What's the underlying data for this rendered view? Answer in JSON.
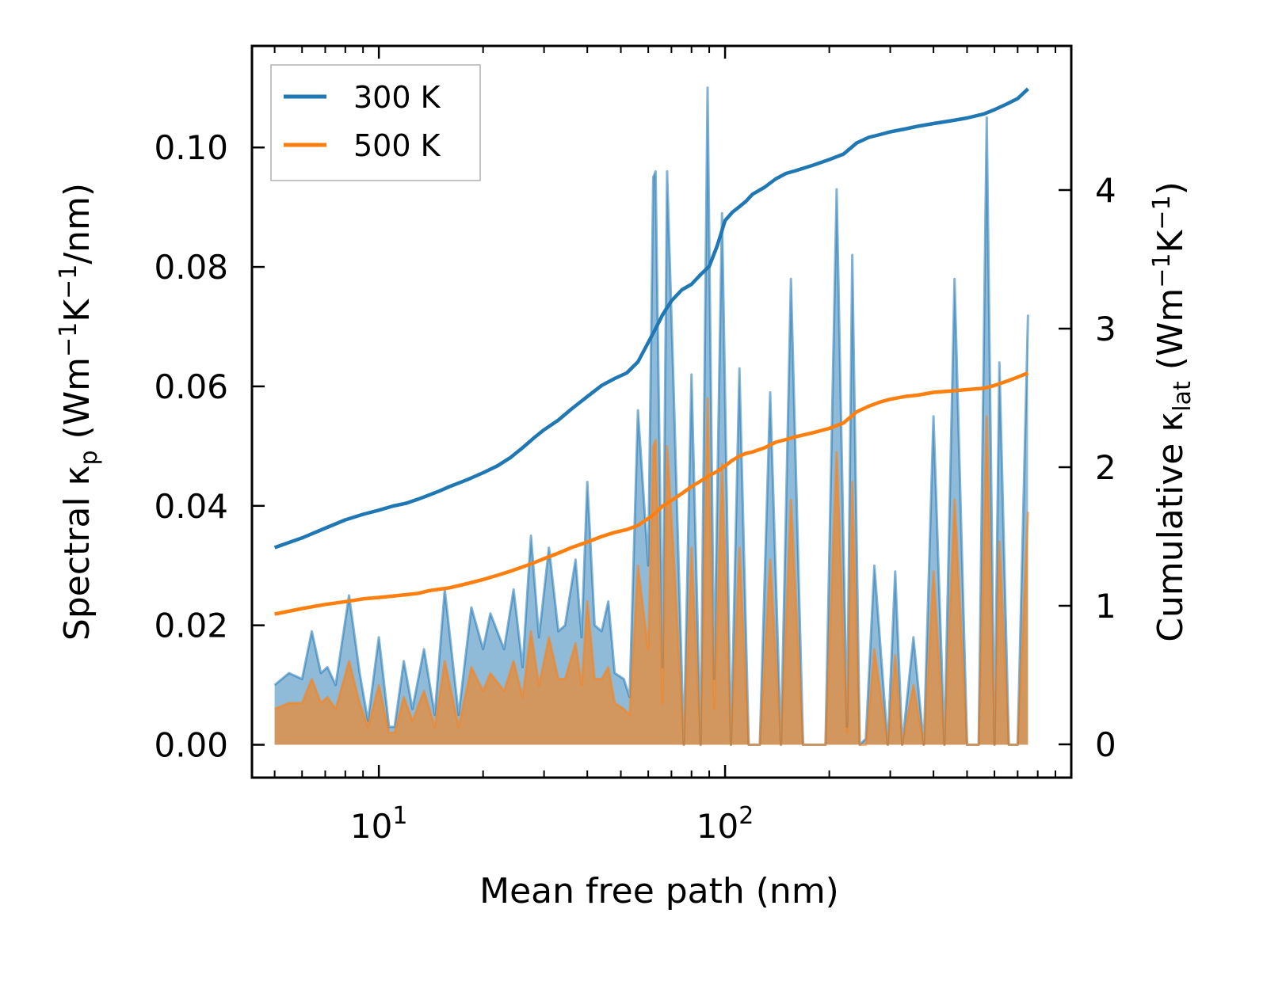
{
  "chart_data": {
    "type": "line",
    "xlabel": "Mean free path (nm)",
    "ylabel_left": {
      "text": "Spectral κ",
      "sub": "p",
      "unit_pre": " (Wm",
      "sup1": "−1",
      "unit_mid": "K",
      "sup2": "−1",
      "unit_post": "/nm)"
    },
    "ylabel_right": {
      "text": "Cumulative κ",
      "sub": "lat",
      "unit_pre": " (Wm",
      "sup1": "−1",
      "unit_mid": "K",
      "sup2": "−1",
      "unit_post": ")"
    },
    "xscale": "log",
    "xlim": [
      4.3,
      1000
    ],
    "ylim_left": [
      -0.0055,
      0.117
    ],
    "ylim_right": [
      -0.24,
      5.04
    ],
    "xticks": [
      {
        "base": "10",
        "exp": "1",
        "value": 10
      },
      {
        "base": "10",
        "exp": "2",
        "value": 100
      }
    ],
    "yticks_left": [
      "0.00",
      "0.02",
      "0.04",
      "0.06",
      "0.08",
      "0.10"
    ],
    "yticks_left_values": [
      0,
      0.02,
      0.04,
      0.06,
      0.08,
      0.1
    ],
    "yticks_right": [
      "0",
      "1",
      "2",
      "3",
      "4"
    ],
    "yticks_right_values": [
      0,
      1,
      2,
      3,
      4
    ],
    "legend": {
      "location": "upper-left",
      "entries": [
        "300 K",
        "500 K"
      ]
    },
    "colors": {
      "s300": "#1f77b4",
      "s500": "#ff7f0e",
      "fill300": "#1f77b4",
      "fill500": "#ff7f0e"
    },
    "spectral_series": [
      {
        "name": "300 K",
        "x": [
          5.0,
          5.5,
          6.0,
          6.4,
          6.8,
          7.1,
          7.5,
          8.2,
          8.8,
          9.3,
          10,
          10.7,
          11.1,
          11.8,
          12.5,
          13.5,
          14.5,
          15.5,
          17,
          18.5,
          20,
          21,
          23,
          24.5,
          26,
          27.5,
          29,
          31,
          33,
          34.5,
          37,
          38.5,
          40,
          42,
          44,
          46,
          48,
          51,
          53,
          56,
          60,
          62,
          63,
          66,
          68,
          71,
          76,
          80,
          85,
          89,
          93,
          98,
          104,
          110,
          117,
          126,
          135,
          145,
          155,
          168,
          180,
          195,
          210,
          225,
          233,
          245,
          255,
          270,
          295,
          310,
          325,
          350,
          375,
          400,
          430,
          460,
          500,
          540,
          570,
          600,
          620,
          660,
          700,
          750
        ],
        "y": [
          0.01,
          0.012,
          0.011,
          0.019,
          0.012,
          0.013,
          0.01,
          0.025,
          0.012,
          0.004,
          0.018,
          0.003,
          0.003,
          0.014,
          0.006,
          0.016,
          0.005,
          0.026,
          0.005,
          0.023,
          0.016,
          0.022,
          0.016,
          0.026,
          0.013,
          0.035,
          0.018,
          0.033,
          0.019,
          0.02,
          0.031,
          0.018,
          0.044,
          0.02,
          0.019,
          0.024,
          0.012,
          0.011,
          0.008,
          0.056,
          0.03,
          0.095,
          0.096,
          0.013,
          0.096,
          0.06,
          0.0,
          0.062,
          0.0,
          0.11,
          0.011,
          0.089,
          0.0,
          0.063,
          0.0,
          0.0,
          0.059,
          0.0,
          0.078,
          0.0,
          0.0,
          0.0,
          0.093,
          0.003,
          0.082,
          0.0,
          0.001,
          0.03,
          0.0,
          0.029,
          0.0,
          0.018,
          0.0,
          0.055,
          0.0,
          0.078,
          0.0,
          0.0,
          0.105,
          0.0,
          0.064,
          0.0,
          0.0,
          0.072
        ]
      },
      {
        "name": "500 K",
        "x": [
          5.0,
          5.5,
          6.0,
          6.4,
          6.8,
          7.1,
          7.5,
          8.2,
          8.8,
          9.3,
          10,
          10.7,
          11.1,
          11.8,
          12.5,
          13.5,
          14.5,
          15.5,
          17,
          18.5,
          20,
          21,
          23,
          24.5,
          26,
          27.5,
          29,
          31,
          33,
          34.5,
          37,
          38.5,
          40,
          42,
          44,
          46,
          48,
          51,
          53,
          56,
          60,
          62,
          63,
          66,
          68,
          71,
          76,
          80,
          85,
          89,
          93,
          98,
          104,
          110,
          117,
          126,
          135,
          145,
          155,
          168,
          180,
          195,
          210,
          225,
          233,
          245,
          255,
          270,
          295,
          310,
          325,
          350,
          375,
          400,
          430,
          460,
          500,
          540,
          570,
          600,
          620,
          660,
          700,
          750
        ],
        "y": [
          0.006,
          0.007,
          0.007,
          0.011,
          0.007,
          0.008,
          0.006,
          0.014,
          0.007,
          0.003,
          0.01,
          0.002,
          0.002,
          0.008,
          0.004,
          0.009,
          0.003,
          0.014,
          0.003,
          0.013,
          0.009,
          0.012,
          0.009,
          0.014,
          0.008,
          0.019,
          0.01,
          0.018,
          0.011,
          0.011,
          0.017,
          0.01,
          0.024,
          0.011,
          0.011,
          0.013,
          0.007,
          0.006,
          0.005,
          0.03,
          0.016,
          0.05,
          0.051,
          0.007,
          0.05,
          0.032,
          0.0,
          0.033,
          0.0,
          0.058,
          0.006,
          0.047,
          0.0,
          0.033,
          0.0,
          0.0,
          0.031,
          0.0,
          0.041,
          0.0,
          0.0,
          0.0,
          0.049,
          0.002,
          0.044,
          0.0,
          0.0,
          0.016,
          0.0,
          0.015,
          0.0,
          0.01,
          0.0,
          0.029,
          0.0,
          0.041,
          0.0,
          0.0,
          0.055,
          0.0,
          0.034,
          0.0,
          0.0,
          0.039
        ]
      }
    ],
    "cumulative_series": [
      {
        "name": "300 K",
        "x": [
          5.0,
          6.0,
          7.0,
          8.0,
          9.0,
          10.0,
          11.0,
          12.0,
          13.0,
          14.0,
          15.0,
          16.0,
          18.0,
          20.0,
          22.0,
          24.0,
          26.0,
          28.0,
          30.0,
          33.0,
          36.0,
          40.0,
          44.0,
          48.0,
          52.0,
          56.0,
          60.0,
          63.0,
          66.0,
          70.0,
          75.0,
          80.0,
          85.0,
          90.0,
          95.0,
          100.0,
          105.0,
          110.0,
          115.0,
          120.0,
          130.0,
          140.0,
          150.0,
          160.0,
          180.0,
          200.0,
          220.0,
          240.0,
          260.0,
          280.0,
          300.0,
          330.0,
          360.0,
          400.0,
          450.0,
          500.0,
          560.0,
          600.0,
          650.0,
          700.0,
          750.0
        ],
        "y": [
          1.42,
          1.49,
          1.56,
          1.62,
          1.66,
          1.69,
          1.72,
          1.74,
          1.77,
          1.8,
          1.83,
          1.86,
          1.91,
          1.96,
          2.01,
          2.07,
          2.14,
          2.21,
          2.27,
          2.34,
          2.42,
          2.51,
          2.59,
          2.64,
          2.68,
          2.76,
          2.9,
          3.0,
          3.1,
          3.2,
          3.28,
          3.32,
          3.39,
          3.45,
          3.6,
          3.78,
          3.84,
          3.88,
          3.92,
          3.97,
          4.02,
          4.08,
          4.12,
          4.14,
          4.18,
          4.22,
          4.26,
          4.34,
          4.38,
          4.4,
          4.42,
          4.44,
          4.46,
          4.48,
          4.5,
          4.52,
          4.55,
          4.58,
          4.62,
          4.66,
          4.73
        ]
      },
      {
        "name": "500 K",
        "x": [
          5.0,
          6.0,
          7.0,
          8.0,
          9.0,
          10.0,
          11.0,
          12.0,
          13.0,
          14.0,
          15.0,
          16.0,
          18.0,
          20.0,
          22.0,
          24.0,
          26.0,
          28.0,
          30.0,
          33.0,
          36.0,
          40.0,
          44.0,
          48.0,
          52.0,
          56.0,
          60.0,
          63.0,
          66.0,
          70.0,
          75.0,
          80.0,
          85.0,
          90.0,
          95.0,
          100.0,
          105.0,
          110.0,
          115.0,
          120.0,
          130.0,
          140.0,
          150.0,
          160.0,
          180.0,
          200.0,
          220.0,
          240.0,
          260.0,
          280.0,
          300.0,
          330.0,
          360.0,
          400.0,
          450.0,
          500.0,
          560.0,
          600.0,
          650.0,
          700.0,
          750.0
        ],
        "y": [
          0.94,
          0.98,
          1.01,
          1.03,
          1.05,
          1.06,
          1.07,
          1.08,
          1.09,
          1.11,
          1.12,
          1.13,
          1.16,
          1.19,
          1.22,
          1.25,
          1.28,
          1.31,
          1.34,
          1.38,
          1.42,
          1.46,
          1.5,
          1.53,
          1.55,
          1.58,
          1.63,
          1.67,
          1.72,
          1.76,
          1.81,
          1.86,
          1.9,
          1.94,
          1.97,
          2.01,
          2.05,
          2.08,
          2.1,
          2.11,
          2.14,
          2.18,
          2.2,
          2.22,
          2.25,
          2.28,
          2.32,
          2.4,
          2.44,
          2.47,
          2.49,
          2.51,
          2.52,
          2.54,
          2.55,
          2.56,
          2.57,
          2.59,
          2.62,
          2.65,
          2.68
        ]
      }
    ]
  }
}
